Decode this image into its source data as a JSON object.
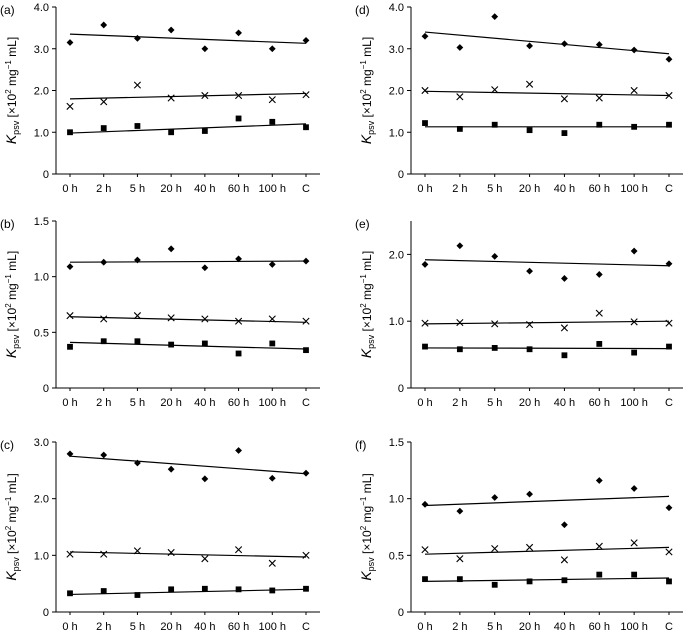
{
  "figure": {
    "ylabel_main": "K",
    "ylabel_sub": "psv",
    "ylabel_rest_a": " [×10",
    "ylabel_sup1": "2",
    "ylabel_rest_b": " mg",
    "ylabel_sup2": "−1",
    "ylabel_rest_c": " mL]"
  },
  "chart_data": [
    {
      "panel": "(a)",
      "type": "scatter",
      "categories": [
        "0 h",
        "2 h",
        "5 h",
        "20 h",
        "40 h",
        "60 h",
        "100 h",
        "C"
      ],
      "ylim": [
        0,
        4.0
      ],
      "yticks": [
        "0",
        "1.0",
        "2.0",
        "3.0",
        "4.0"
      ],
      "ytick_values": [
        0,
        1,
        2,
        3,
        4
      ],
      "series": [
        {
          "marker": "diamond",
          "values": [
            3.15,
            3.57,
            3.25,
            3.45,
            3.0,
            3.38,
            3.0,
            3.2
          ],
          "trend": [
            3.35,
            3.13
          ]
        },
        {
          "marker": "cross",
          "values": [
            1.62,
            1.73,
            2.13,
            1.82,
            1.88,
            1.88,
            1.78,
            1.9
          ],
          "trend": [
            1.8,
            1.93
          ]
        },
        {
          "marker": "square",
          "values": [
            1.0,
            1.1,
            1.15,
            1.0,
            1.03,
            1.33,
            1.25,
            1.12
          ],
          "trend": [
            0.98,
            1.2
          ]
        }
      ]
    },
    {
      "panel": "(d)",
      "type": "scatter",
      "categories": [
        "0 h",
        "2 h",
        "5 h",
        "20 h",
        "40 h",
        "60 h",
        "100 h",
        "C"
      ],
      "ylim": [
        0,
        4.0
      ],
      "yticks": [
        "0",
        "1.0",
        "2.0",
        "3.0",
        "4.0"
      ],
      "ytick_values": [
        0,
        1,
        2,
        3,
        4
      ],
      "series": [
        {
          "marker": "diamond",
          "values": [
            3.3,
            3.03,
            3.77,
            3.07,
            3.12,
            3.1,
            2.97,
            2.75
          ],
          "trend": [
            3.4,
            2.88
          ]
        },
        {
          "marker": "cross",
          "values": [
            2.0,
            1.85,
            2.02,
            2.15,
            1.8,
            1.82,
            2.0,
            1.88
          ],
          "trend": [
            1.98,
            1.88
          ]
        },
        {
          "marker": "square",
          "values": [
            1.22,
            1.08,
            1.18,
            1.05,
            0.98,
            1.18,
            1.13,
            1.18
          ],
          "trend": [
            1.13,
            1.13
          ]
        }
      ]
    },
    {
      "panel": "(b)",
      "type": "scatter",
      "categories": [
        "0 h",
        "2 h",
        "5 h",
        "20 h",
        "40 h",
        "60 h",
        "100 h",
        "C"
      ],
      "ylim": [
        0,
        1.5
      ],
      "yticks": [
        "0",
        "0.5",
        "1.0",
        "1.5"
      ],
      "ytick_values": [
        0,
        0.5,
        1,
        1.5
      ],
      "series": [
        {
          "marker": "diamond",
          "values": [
            1.09,
            1.13,
            1.15,
            1.25,
            1.08,
            1.16,
            1.11,
            1.14
          ],
          "trend": [
            1.13,
            1.14
          ]
        },
        {
          "marker": "cross",
          "values": [
            0.65,
            0.62,
            0.65,
            0.63,
            0.62,
            0.6,
            0.62,
            0.6
          ],
          "trend": [
            0.64,
            0.59
          ]
        },
        {
          "marker": "square",
          "values": [
            0.37,
            0.42,
            0.42,
            0.39,
            0.4,
            0.31,
            0.4,
            0.34
          ],
          "trend": [
            0.41,
            0.35
          ]
        }
      ]
    },
    {
      "panel": "(e)",
      "type": "scatter",
      "categories": [
        "0 h",
        "2 h",
        "5 h",
        "20 h",
        "40 h",
        "60 h",
        "100 h",
        "C"
      ],
      "ylim": [
        0,
        2.5
      ],
      "yticks": [
        "0",
        "1.0",
        "2.0"
      ],
      "ytick_values": [
        0,
        1,
        2
      ],
      "series": [
        {
          "marker": "diamond",
          "values": [
            1.85,
            2.13,
            1.97,
            1.75,
            1.64,
            1.7,
            2.05,
            1.86
          ],
          "trend": [
            1.92,
            1.83
          ]
        },
        {
          "marker": "cross",
          "values": [
            0.97,
            0.98,
            0.96,
            0.95,
            0.9,
            1.12,
            0.99,
            0.97
          ],
          "trend": [
            0.96,
            1.0
          ]
        },
        {
          "marker": "square",
          "values": [
            0.62,
            0.58,
            0.6,
            0.58,
            0.49,
            0.66,
            0.53,
            0.62
          ],
          "trend": [
            0.6,
            0.59
          ]
        }
      ]
    },
    {
      "panel": "(c)",
      "type": "scatter",
      "categories": [
        "0 h",
        "2 h",
        "5 h",
        "20 h",
        "40 h",
        "60 h",
        "100 h",
        "C"
      ],
      "ylim": [
        0,
        3.0
      ],
      "yticks": [
        "0",
        "1.0",
        "2.0",
        "3.0"
      ],
      "ytick_values": [
        0,
        1,
        2,
        3
      ],
      "series": [
        {
          "marker": "diamond",
          "values": [
            2.79,
            2.77,
            2.63,
            2.52,
            2.35,
            2.85,
            2.36,
            2.45
          ],
          "trend": [
            2.75,
            2.44
          ]
        },
        {
          "marker": "cross",
          "values": [
            1.02,
            1.02,
            1.08,
            1.05,
            0.94,
            1.1,
            0.86,
            1.0
          ],
          "trend": [
            1.06,
            0.97
          ]
        },
        {
          "marker": "square",
          "values": [
            0.33,
            0.37,
            0.3,
            0.4,
            0.41,
            0.4,
            0.38,
            0.41
          ],
          "trend": [
            0.31,
            0.4
          ]
        }
      ]
    },
    {
      "panel": "(f)",
      "type": "scatter",
      "categories": [
        "0 h",
        "2 h",
        "5 h",
        "20 h",
        "40 h",
        "60 h",
        "100 h",
        "C"
      ],
      "ylim": [
        0,
        1.5
      ],
      "yticks": [
        "0",
        "0.5",
        "1.0",
        "1.5"
      ],
      "ytick_values": [
        0,
        0.5,
        1,
        1.5
      ],
      "series": [
        {
          "marker": "diamond",
          "values": [
            0.95,
            0.89,
            1.01,
            1.04,
            0.77,
            1.16,
            1.09,
            0.92
          ],
          "trend": [
            0.94,
            1.02
          ]
        },
        {
          "marker": "cross",
          "values": [
            0.55,
            0.47,
            0.56,
            0.57,
            0.46,
            0.58,
            0.61,
            0.53
          ],
          "trend": [
            0.51,
            0.57
          ]
        },
        {
          "marker": "square",
          "values": [
            0.29,
            0.29,
            0.24,
            0.27,
            0.28,
            0.33,
            0.33,
            0.27
          ],
          "trend": [
            0.27,
            0.3
          ]
        }
      ]
    }
  ]
}
